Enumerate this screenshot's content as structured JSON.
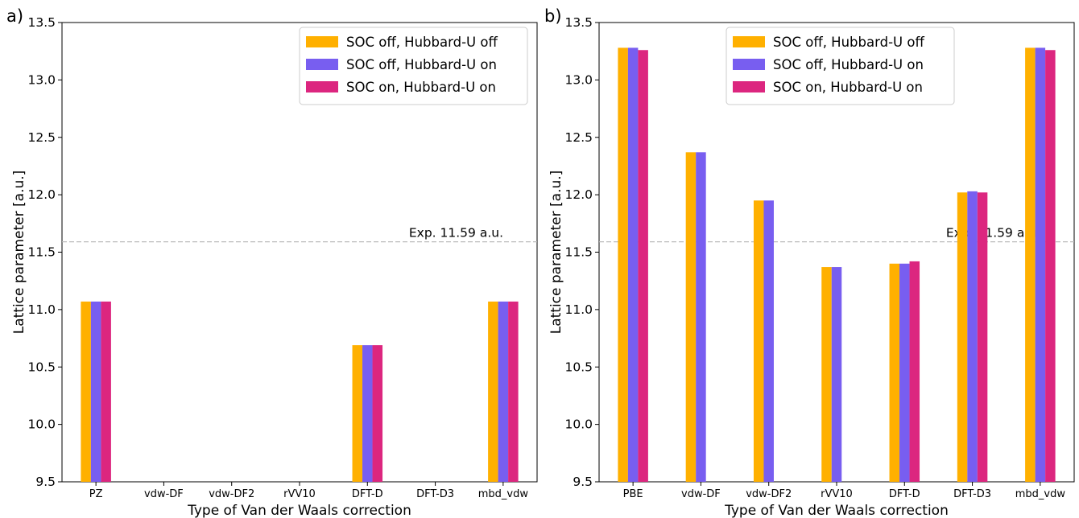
{
  "colors": {
    "soc_off_u_off": "#ffb000",
    "soc_off_u_on": "#785ef0",
    "soc_on_u_on": "#dc267f",
    "exp_line": "#bbbbbb"
  },
  "chart_data": [
    {
      "type": "bar",
      "panel_label": "a)",
      "xlabel": "Type of Van der Waals correction",
      "ylabel": "Lattice parameter [a.u.]",
      "ylim": [
        9.5,
        13.5
      ],
      "yticks": [
        9.5,
        10.0,
        10.5,
        11.0,
        11.5,
        12.0,
        12.5,
        13.0,
        13.5
      ],
      "ytick_labels": [
        "9.5",
        "10.0",
        "10.5",
        "11.0",
        "11.5",
        "12.0",
        "12.5",
        "13.0",
        "13.5"
      ],
      "categories": [
        "PZ",
        "vdw-DF",
        "vdw-DF2",
        "rVV10",
        "DFT-D",
        "DFT-D3",
        "mbd_vdw"
      ],
      "series": [
        {
          "name": "SOC off, Hubbard-U off",
          "color_key": "soc_off_u_off",
          "values": [
            11.07,
            null,
            null,
            null,
            10.69,
            null,
            11.07
          ]
        },
        {
          "name": "SOC off, Hubbard-U on",
          "color_key": "soc_off_u_on",
          "values": [
            11.07,
            null,
            null,
            null,
            10.69,
            null,
            11.07
          ]
        },
        {
          "name": "SOC on, Hubbard-U on",
          "color_key": "soc_on_u_on",
          "values": [
            11.07,
            null,
            null,
            null,
            10.69,
            null,
            11.07
          ]
        }
      ],
      "reference_line": {
        "value": 11.59,
        "label": "Exp. 11.59 a.u."
      },
      "legend_position": "upper-right",
      "grid": false
    },
    {
      "type": "bar",
      "panel_label": "b)",
      "xlabel": "Type of Van der Waals correction",
      "ylabel": "Lattice parameter [a.u.]",
      "ylim": [
        9.5,
        13.5
      ],
      "yticks": [
        9.5,
        10.0,
        10.5,
        11.0,
        11.5,
        12.0,
        12.5,
        13.0,
        13.5
      ],
      "ytick_labels": [
        "9.5",
        "10.0",
        "10.5",
        "11.0",
        "11.5",
        "12.0",
        "12.5",
        "13.0",
        "13.5"
      ],
      "categories": [
        "PBE",
        "vdw-DF",
        "vdw-DF2",
        "rVV10",
        "DFT-D",
        "DFT-D3",
        "mbd_vdw"
      ],
      "series": [
        {
          "name": "SOC off, Hubbard-U off",
          "color_key": "soc_off_u_off",
          "values": [
            13.28,
            12.37,
            11.95,
            11.37,
            11.4,
            12.02,
            13.28
          ]
        },
        {
          "name": "SOC off, Hubbard-U on",
          "color_key": "soc_off_u_on",
          "values": [
            13.28,
            12.37,
            11.95,
            11.37,
            11.4,
            12.03,
            13.28
          ]
        },
        {
          "name": "SOC on, Hubbard-U on",
          "color_key": "soc_on_u_on",
          "values": [
            13.26,
            null,
            null,
            null,
            11.42,
            12.02,
            13.26
          ]
        }
      ],
      "reference_line": {
        "value": 11.59,
        "label": "Exp. 11.59 a.u."
      },
      "legend_position": "upper-center",
      "grid": false
    }
  ]
}
